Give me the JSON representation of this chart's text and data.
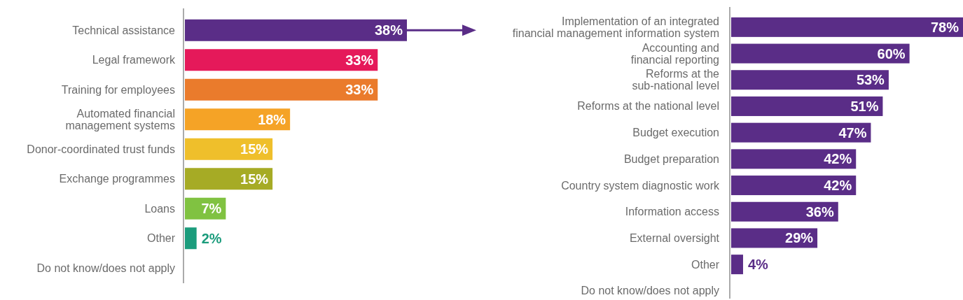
{
  "chart_data": [
    {
      "type": "bar",
      "orientation": "horizontal",
      "categories": [
        "Technical assistance",
        "Legal framework",
        "Training for employees",
        "Automated financial management systems",
        "Donor-coordinated trust funds",
        "Exchange programmes",
        "Loans",
        "Other",
        "Do not know/does not apply"
      ],
      "values": [
        38,
        33,
        33,
        18,
        15,
        15,
        7,
        2,
        null
      ],
      "value_labels": [
        "38%",
        "33%",
        "33%",
        "18%",
        "15%",
        "15%",
        "7%",
        "2%",
        null
      ],
      "colors": [
        "#5a2d87",
        "#e5195a",
        "#ea7b2c",
        "#f5a326",
        "#efbf2b",
        "#a6ab25",
        "#80c241",
        "#1b9c7c",
        "#1b9c7c"
      ]
    },
    {
      "type": "bar",
      "orientation": "horizontal",
      "categories": [
        "Implementation of an integrated financial management information system",
        "Accounting and financial reporting",
        "Reforms at the sub-national level",
        "Reforms at the national level",
        "Budget execution",
        "Budget preparation",
        "Country system diagnostic work",
        "Information access",
        "External oversight",
        "Other",
        "Do not know/does not apply"
      ],
      "values": [
        78,
        60,
        53,
        51,
        47,
        42,
        42,
        36,
        29,
        4,
        null
      ],
      "value_labels": [
        "78%",
        "60%",
        "53%",
        "51%",
        "47%",
        "42%",
        "42%",
        "36%",
        "29%",
        "4%",
        null
      ],
      "color": "#5a2d87"
    }
  ]
}
